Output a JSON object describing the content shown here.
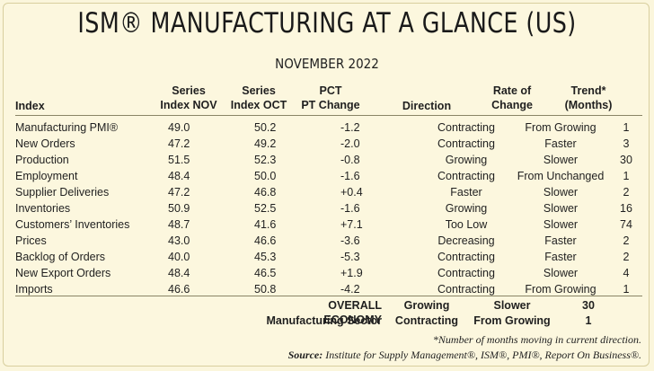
{
  "title": "ISM® MANUFACTURING AT A GLANCE (US)",
  "subtitle": "NOVEMBER 2022",
  "headers": {
    "index": "Index",
    "nov": [
      "Series",
      "Index NOV"
    ],
    "oct": [
      "Series",
      "Index OCT"
    ],
    "chg": [
      "PCT",
      "PT Change"
    ],
    "direction": "Direction",
    "rate": [
      "Rate of",
      "Change"
    ],
    "trend": [
      "Trend*",
      "(Months)"
    ]
  },
  "rows": [
    {
      "index": "Manufacturing PMI®",
      "nov": "49.0",
      "oct": "50.2",
      "chg": "-1.2",
      "direction": "Contracting",
      "rate": "From Growing",
      "trend": "1"
    },
    {
      "index": "New Orders",
      "nov": "47.2",
      "oct": "49.2",
      "chg": "-2.0",
      "direction": "Contracting",
      "rate": "Faster",
      "trend": "3"
    },
    {
      "index": "Production",
      "nov": "51.5",
      "oct": "52.3",
      "chg": "-0.8",
      "direction": "Growing",
      "rate": "Slower",
      "trend": "30"
    },
    {
      "index": "Employment",
      "nov": "48.4",
      "oct": "50.0",
      "chg": "-1.6",
      "direction": "Contracting",
      "rate": "From Unchanged",
      "trend": "1"
    },
    {
      "index": "Supplier Deliveries",
      "nov": "47.2",
      "oct": "46.8",
      "chg": "+0.4",
      "direction": "Faster",
      "rate": "Slower",
      "trend": "2"
    },
    {
      "index": "Inventories",
      "nov": "50.9",
      "oct": "52.5",
      "chg": "-1.6",
      "direction": "Growing",
      "rate": "Slower",
      "trend": "16"
    },
    {
      "index": "Customers’ Inventories",
      "nov": "48.7",
      "oct": "41.6",
      "chg": "+7.1",
      "direction": "Too Low",
      "rate": "Slower",
      "trend": "74"
    },
    {
      "index": "Prices",
      "nov": "43.0",
      "oct": "46.6",
      "chg": "-3.6",
      "direction": "Decreasing",
      "rate": "Faster",
      "trend": "2"
    },
    {
      "index": "Backlog of Orders",
      "nov": "40.0",
      "oct": "45.3",
      "chg": "-5.3",
      "direction": "Contracting",
      "rate": "Faster",
      "trend": "2"
    },
    {
      "index": "New Export Orders",
      "nov": "48.4",
      "oct": "46.5",
      "chg": "+1.9",
      "direction": "Contracting",
      "rate": "Slower",
      "trend": "4"
    },
    {
      "index": "Imports",
      "nov": "46.6",
      "oct": "50.8",
      "chg": "-4.2",
      "direction": "Contracting",
      "rate": "From Growing",
      "trend": "1"
    }
  ],
  "summary": [
    {
      "label": "OVERALL ECONOMY",
      "direction": "Growing",
      "rate": "Slower",
      "trend": "30"
    },
    {
      "label": "Manufacturing Sector",
      "direction": "Contracting",
      "rate": "From Growing",
      "trend": "1"
    }
  ],
  "footnote": "*Number of months moving in current direction.",
  "source_label": "Source:",
  "source_text": "Institute for Supply Management®, ISM®, PMI®, Report On Business®."
}
